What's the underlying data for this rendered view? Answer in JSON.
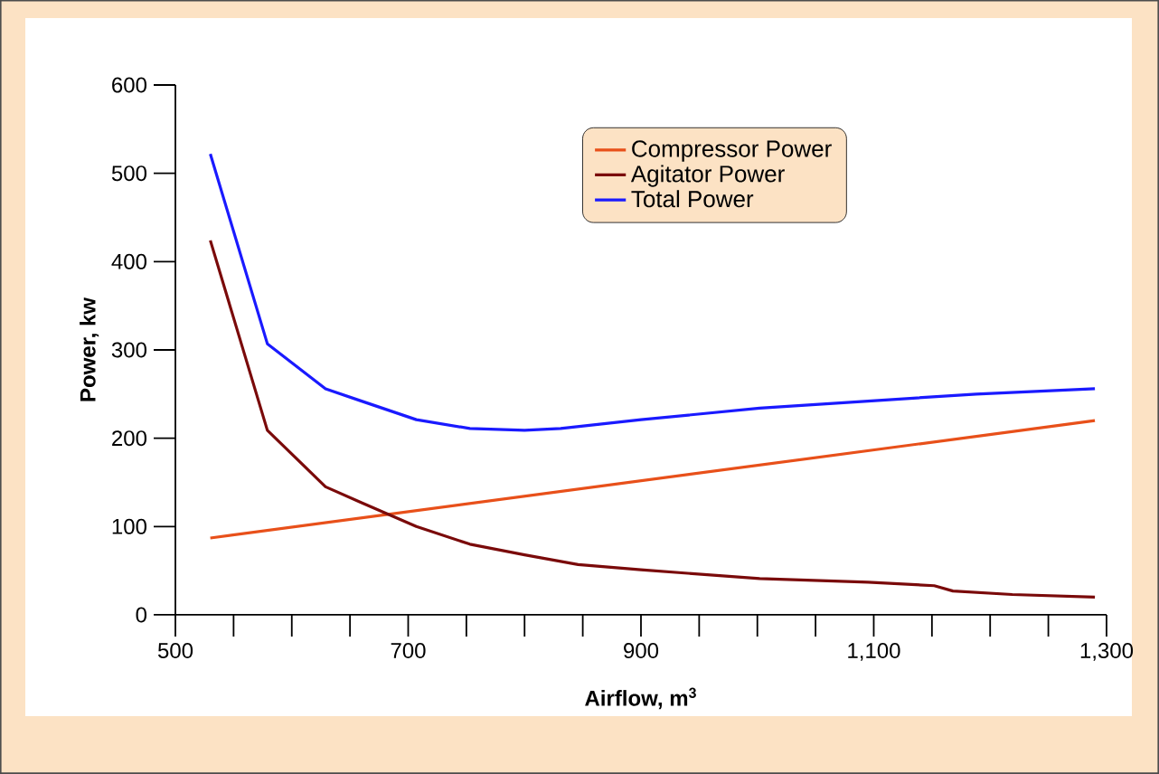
{
  "chart_data": {
    "type": "line",
    "xlabel": "Airflow, m$^{3}$",
    "ylabel": "Power, kw",
    "xlim": [
      500,
      1300
    ],
    "ylim": [
      0,
      600
    ],
    "xticks": [
      500,
      {
        "value": 550,
        "label": null
      },
      {
        "value": 600,
        "label": null
      },
      {
        "value": 650,
        "label": null
      },
      700,
      {
        "value": 750,
        "label": null
      },
      {
        "value": 800,
        "label": null
      },
      {
        "value": 850,
        "label": null
      },
      900,
      {
        "value": 950,
        "label": null
      },
      {
        "value": 1000,
        "label": null
      },
      {
        "value": 1050,
        "label": null
      },
      {
        "value": 1100,
        "label": "1,100"
      },
      {
        "value": 1150,
        "label": null
      },
      {
        "value": 1200,
        "label": null
      },
      {
        "value": 1250,
        "label": null
      },
      {
        "value": 1300,
        "label": "1,300"
      }
    ],
    "yticks": [
      0,
      100,
      200,
      300,
      400,
      500,
      600
    ],
    "legend": "top right",
    "grid": false,
    "marker": "none",
    "line_style": "solid",
    "series": [
      {
        "name": "Compressor Power",
        "color": "#e8501a",
        "x": [
          530,
          1290
        ],
        "values": [
          87,
          220
        ]
      },
      {
        "name": "Agitator Power",
        "color": "#7a0a0a",
        "x": [
          530,
          579,
          629,
          660,
          707,
          753,
          800,
          846,
          900,
          1002,
          1095,
          1152,
          1168,
          1219,
          1290
        ],
        "values": [
          424,
          209,
          145,
          127,
          100,
          80,
          68,
          57,
          51,
          41,
          37,
          33,
          27,
          23,
          20
        ]
      },
      {
        "name": "Total Power",
        "color": "#1a1aff",
        "x": [
          530,
          579,
          629,
          660,
          707,
          753,
          800,
          831,
          900,
          1002,
          1095,
          1188,
          1290
        ],
        "values": [
          522,
          307,
          256,
          242,
          221,
          211,
          209,
          211,
          221,
          234,
          242,
          250,
          256
        ]
      }
    ]
  }
}
